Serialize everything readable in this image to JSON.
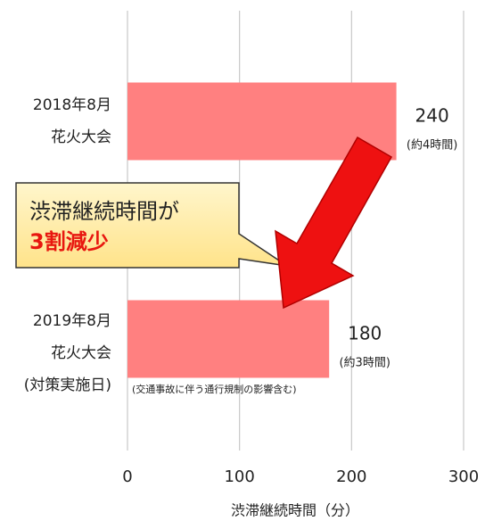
{
  "chart_data": {
    "type": "hbar",
    "categories": [
      [
        "2018年8月",
        "花火大会"
      ],
      [
        "2019年8月",
        "花火大会",
        "(対策実施日)"
      ]
    ],
    "values": [
      240,
      180
    ],
    "sublabels": [
      "(約4時間)",
      "(約3時間)"
    ],
    "color": "#ff8080",
    "xlim": [
      0,
      300
    ],
    "xticks": [
      0,
      100,
      200,
      300
    ],
    "grid": true,
    "xlabel": "渋滞継続時間（分）",
    "note": "(交通事故に伴う通行規制の影響含む)",
    "callout": [
      "渋滞継続時間が",
      "3割減少"
    ]
  }
}
